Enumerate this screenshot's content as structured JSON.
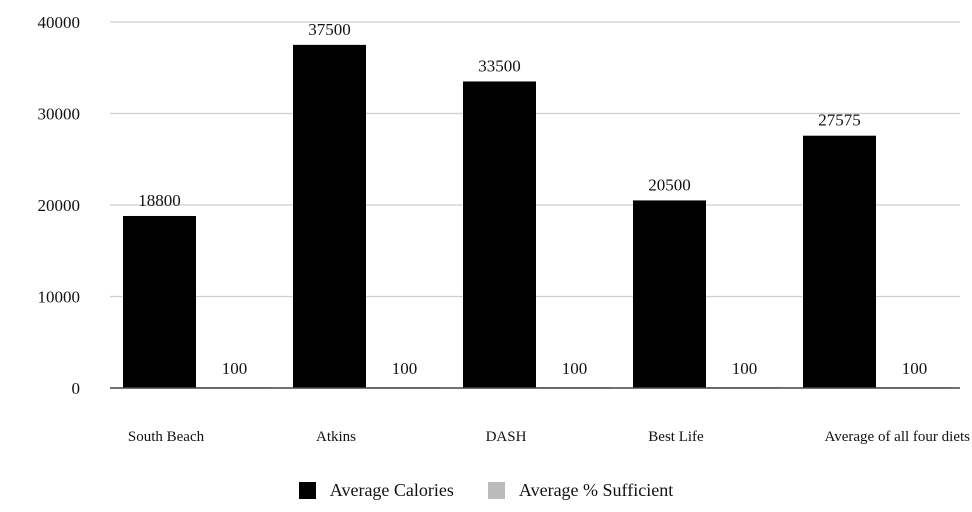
{
  "chart_data": {
    "type": "bar",
    "categories": [
      "South Beach",
      "Atkins",
      "DASH",
      "Best Life",
      "Average of all four diets"
    ],
    "series": [
      {
        "name": "Average Calories",
        "values": [
          18800,
          37500,
          33500,
          20500,
          27575
        ],
        "color": "#000000"
      },
      {
        "name": "Average % Sufficient",
        "values": [
          100,
          100,
          100,
          100,
          100
        ],
        "color": "#bbbbbb"
      }
    ],
    "data_labels": {
      "Average Calories": [
        "18800",
        "37500",
        "33500",
        "20500",
        "27575"
      ],
      "Average % Sufficient": [
        "100",
        "100",
        "100",
        "100",
        "100"
      ]
    },
    "yticks": [
      "0",
      "10000",
      "20000",
      "30000",
      "40000"
    ],
    "ylim": [
      0,
      40000
    ],
    "grid": true,
    "legend_position": "bottom",
    "title": "",
    "xlabel": "",
    "ylabel": ""
  }
}
